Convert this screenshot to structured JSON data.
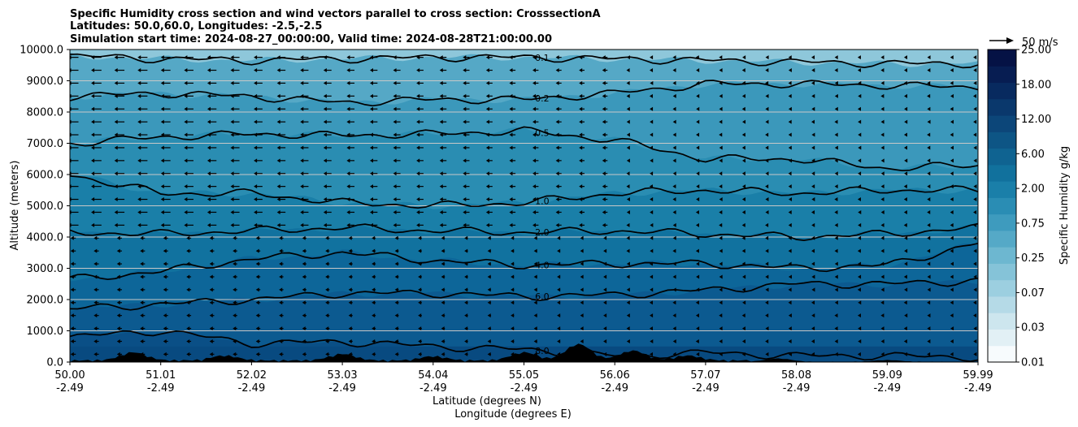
{
  "chart_data": {
    "type": "contour-cross-section",
    "title_lines": [
      "Specific Humidity cross section and wind vectors parallel to cross section: CrosssectionA",
      "Latitudes: 50.0,60.0, Longitudes: -2.5,-2.5",
      "Simulation start time: 2024-08-27_00:00:00, Valid time: 2024-08-28T21:00:00.00"
    ],
    "ylabel": "Altitude (meters)",
    "xlabel_lat": "Latitude (degrees N)",
    "xlabel_lon": "Longitude (degrees E)",
    "ylim": [
      0,
      10000
    ],
    "y_ticks": [
      "0.0",
      "1000.0",
      "2000.0",
      "3000.0",
      "4000.0",
      "5000.0",
      "6000.0",
      "7000.0",
      "8000.0",
      "9000.0",
      "10000.0"
    ],
    "x_ticks_lat": [
      "50.00",
      "51.01",
      "52.02",
      "53.03",
      "54.04",
      "55.05",
      "56.06",
      "57.07",
      "58.08",
      "59.09",
      "59.99"
    ],
    "x_ticks_lon": [
      "-2.49",
      "-2.49",
      "-2.49",
      "-2.49",
      "-2.49",
      "-2.49",
      "-2.49",
      "-2.49",
      "-2.49",
      "-2.49",
      "-2.49"
    ],
    "colorbar_label": "Specific Humidity g/kg",
    "colorbar_ticks": [
      "0.01",
      "0.03",
      "0.07",
      "0.25",
      "0.75",
      "2.00",
      "6.00",
      "12.00",
      "18.00",
      "25.00"
    ],
    "colorbar_colors": [
      "#f7fbfd",
      "#e2f0f5",
      "#cde6ee",
      "#b5dae7",
      "#9ccfe0",
      "#85c3d8",
      "#6db7d0",
      "#55a9c7",
      "#3e9bbe",
      "#2a8db4",
      "#1a7fa9",
      "#11719d",
      "#0f6391",
      "#0d5585",
      "#0c4679",
      "#0a386c",
      "#082a5f",
      "#071d52",
      "#051245"
    ],
    "wind_reference_label": "50 m/s",
    "contour_levels": [
      {
        "label": "0.1",
        "altitude_profile": [
          9800,
          9700,
          9650,
          9700,
          9750,
          9750,
          9700,
          9650,
          9600,
          9550,
          9550
        ]
      },
      {
        "label": "0.2",
        "altitude_profile": [
          8500,
          8600,
          8500,
          8300,
          8400,
          8400,
          8600,
          8900,
          8900,
          8850,
          8800
        ]
      },
      {
        "label": "0.5",
        "altitude_profile": [
          7000,
          7200,
          7300,
          7250,
          7300,
          7400,
          7100,
          6500,
          6500,
          6200,
          6300
        ]
      },
      {
        "label": "1.0",
        "altitude_profile": [
          6000,
          5400,
          5400,
          5100,
          5000,
          5100,
          5400,
          5500,
          5400,
          5500,
          5500
        ]
      },
      {
        "label": "2.0",
        "altitude_profile": [
          4150,
          4100,
          4200,
          4300,
          4200,
          4150,
          4200,
          4100,
          4000,
          4100,
          4300
        ]
      },
      {
        "label": "4.0",
        "altitude_profile": [
          2650,
          2900,
          3300,
          3500,
          3250,
          3100,
          3150,
          3150,
          3000,
          3100,
          3800
        ]
      },
      {
        "label": "6.0",
        "altitude_profile": [
          1700,
          1850,
          2000,
          2200,
          2200,
          2100,
          2150,
          2300,
          2500,
          2500,
          2600
        ]
      },
      {
        "label": "8.0",
        "altitude_profile": [
          800,
          1000,
          600,
          650,
          500,
          400,
          200,
          300,
          200,
          200,
          150
        ]
      }
    ]
  }
}
